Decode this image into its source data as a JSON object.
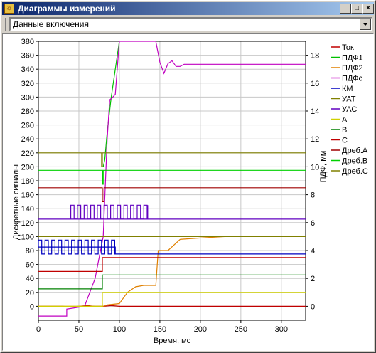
{
  "window": {
    "title": "Диаграммы измерений"
  },
  "dropdown": {
    "value": "Данные включения"
  },
  "chart_data": {
    "type": "line",
    "xlabel": "Время, мс",
    "ylabel_left": "Дискретные сигналы",
    "ylabel_right": "ПДФ, мм",
    "xlim": [
      0,
      330
    ],
    "ylim_left": [
      -20,
      380
    ],
    "ylim_right": [
      -1,
      19
    ],
    "x_ticks": [
      0,
      50,
      100,
      150,
      200,
      250,
      300
    ],
    "y_left_ticks": [
      0,
      20,
      40,
      60,
      80,
      100,
      120,
      140,
      160,
      180,
      200,
      220,
      240,
      260,
      280,
      300,
      320,
      340,
      360,
      380
    ],
    "y_right_ticks": [
      0,
      2,
      4,
      6,
      8,
      10,
      12,
      14,
      16,
      18
    ],
    "grid": true,
    "legend_position": "right",
    "series": [
      {
        "name": "Ток",
        "color": "#c00000",
        "axis": "left",
        "x": [
          0,
          30,
          40,
          50,
          60,
          70,
          80,
          90,
          100,
          120,
          140,
          160,
          180,
          200,
          220,
          240,
          260,
          280,
          300,
          330
        ],
        "y": [
          0,
          0,
          -1,
          0,
          1,
          0,
          0,
          1,
          0,
          0,
          0,
          0,
          0,
          0,
          0,
          0,
          0,
          0,
          0,
          0
        ]
      },
      {
        "name": "ПДФ1",
        "color": "#00c000",
        "axis": "right",
        "x": [
          80,
          82,
          85,
          90,
          95,
          100
        ],
        "y": [
          10,
          10.5,
          12.5,
          15,
          17,
          19
        ]
      },
      {
        "name": "ПДФ2",
        "color": "#e08000",
        "axis": "right",
        "x": [
          0,
          80,
          85,
          100,
          110,
          120,
          130,
          145,
          148,
          160,
          175,
          200,
          230,
          330
        ],
        "y": [
          0,
          0,
          0.1,
          0.2,
          1,
          1.4,
          1.5,
          1.5,
          4,
          4,
          4.8,
          4.9,
          5,
          5
        ]
      },
      {
        "name": "ПДФс",
        "color": "#c000c0",
        "axis": "right",
        "x": [
          0,
          35,
          35,
          57,
          70,
          80,
          85,
          88,
          92,
          95,
          100,
          145,
          150,
          155,
          160,
          165,
          170,
          175,
          180,
          190,
          330
        ],
        "y": [
          -0.7,
          -0.7,
          -0.2,
          0,
          2,
          5,
          12,
          14.8,
          15,
          15.2,
          19,
          19,
          17.5,
          16.7,
          17.4,
          17.6,
          17.2,
          17.2,
          17.35,
          17.35,
          17.35
        ]
      },
      {
        "name": "КМ",
        "color": "#0000c0",
        "axis": "left",
        "x": [
          0,
          95,
          95,
          330
        ],
        "y": [
          85,
          85,
          75,
          75
        ]
      },
      {
        "name": "УАТ",
        "color": "#808000",
        "axis": "left",
        "x": [
          0,
          330
        ],
        "y": [
          100,
          100
        ]
      },
      {
        "name": "УАС",
        "color": "#6000c0",
        "axis": "left",
        "x": [
          0,
          40,
          140,
          140,
          330
        ],
        "y": [
          125,
          125,
          125,
          125,
          125
        ]
      },
      {
        "name": "A",
        "color": "#d0d000",
        "axis": "left",
        "x": [
          0,
          79,
          79,
          330
        ],
        "y": [
          0,
          0,
          20,
          20
        ]
      },
      {
        "name": "B",
        "color": "#008000",
        "axis": "left",
        "x": [
          0,
          79,
          79,
          330
        ],
        "y": [
          25,
          25,
          45,
          45
        ]
      },
      {
        "name": "C",
        "color": "#c00000",
        "axis": "left",
        "x": [
          0,
          79,
          79,
          330
        ],
        "y": [
          50,
          50,
          70,
          70
        ]
      },
      {
        "name": "Дреб.A",
        "color": "#a00000",
        "axis": "left",
        "x": [
          0,
          79,
          79,
          81,
          81,
          330
        ],
        "y": [
          170,
          170,
          150,
          150,
          170,
          170
        ]
      },
      {
        "name": "Дреб.B",
        "color": "#00d000",
        "axis": "left",
        "x": [
          0,
          79,
          79,
          80,
          80,
          330
        ],
        "y": [
          195,
          195,
          175,
          175,
          195,
          195
        ]
      },
      {
        "name": "Дреб.C",
        "color": "#808000",
        "axis": "left",
        "x": [
          0,
          78,
          78,
          79,
          79,
          330
        ],
        "y": [
          220,
          220,
          200,
          200,
          220,
          220
        ]
      }
    ]
  }
}
